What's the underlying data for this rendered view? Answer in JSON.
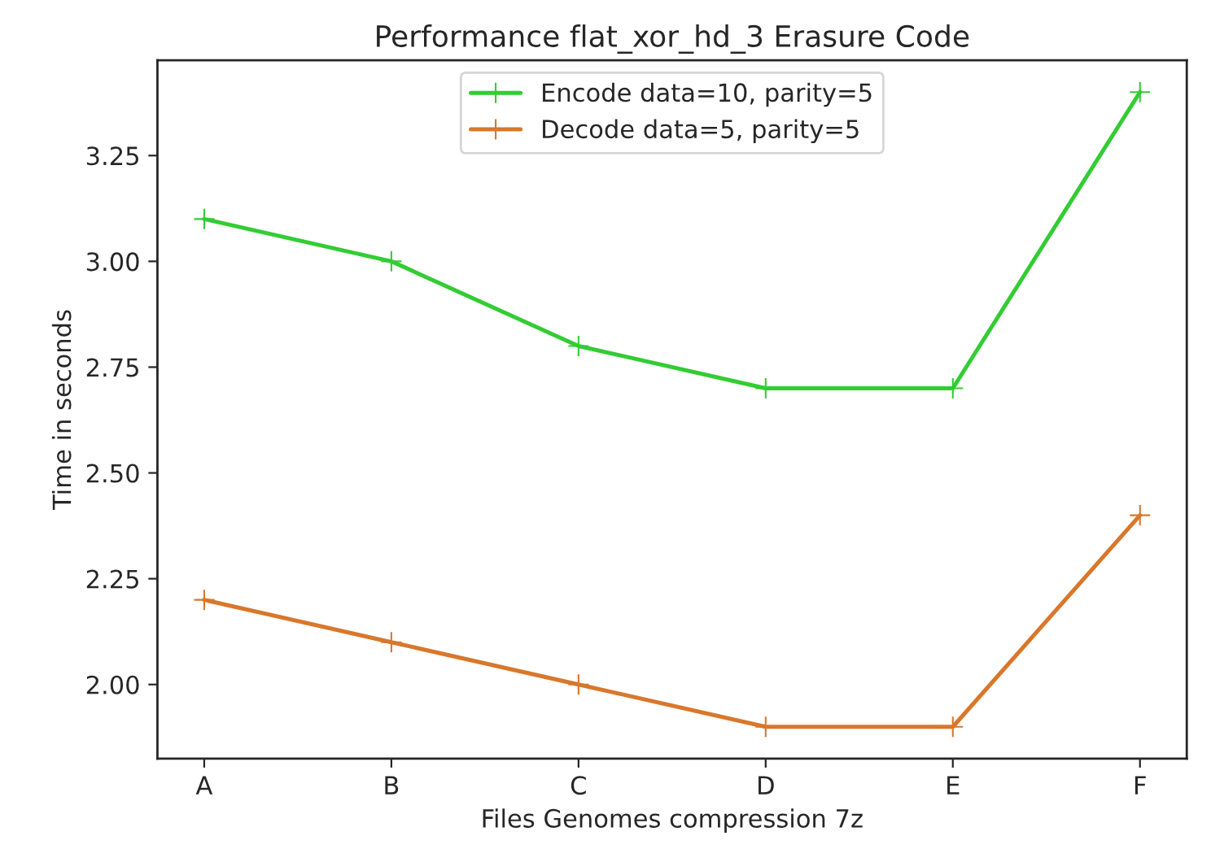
{
  "chart_data": {
    "type": "line",
    "title": "Performance flat_xor_hd_3 Erasure Code",
    "xlabel": "Files Genomes compression 7z",
    "ylabel": "Time in seconds",
    "categories": [
      "A",
      "B",
      "C",
      "D",
      "E",
      "F"
    ],
    "series": [
      {
        "name": "Encode data=10, parity=5",
        "color": "#33cc33",
        "values": [
          3.1,
          3.0,
          2.8,
          2.7,
          2.7,
          3.4
        ]
      },
      {
        "name": "Decode data=5, parity=5",
        "color": "#d9772b",
        "values": [
          2.2,
          2.1,
          2.0,
          1.9,
          1.9,
          2.4
        ]
      }
    ],
    "ylim": [
      1.825,
      3.475
    ],
    "yticks": [
      {
        "value": 2.0,
        "label": "2.00"
      },
      {
        "value": 2.25,
        "label": "2.25"
      },
      {
        "value": 2.5,
        "label": "2.50"
      },
      {
        "value": 2.75,
        "label": "2.75"
      },
      {
        "value": 3.0,
        "label": "3.00"
      },
      {
        "value": 3.25,
        "label": "3.25"
      }
    ],
    "marker": "cross",
    "legend": "top",
    "grid": false
  }
}
